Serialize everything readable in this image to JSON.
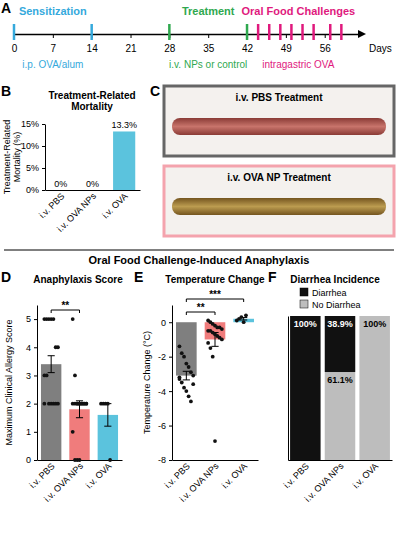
{
  "section_title": "Oral Food Challenge-Induced Anaphylaxis",
  "chart_data": [
    {
      "type": "timeline",
      "label": "A",
      "x_label": "Days",
      "xlim": [
        0,
        62
      ],
      "xticks": [
        0,
        7,
        14,
        21,
        28,
        35,
        42,
        49,
        56
      ],
      "phases": [
        {
          "name": "Sensitization",
          "route": "i.p. OVA/alum",
          "color": "#35a9dc",
          "days": [
            0,
            14
          ]
        },
        {
          "name": "Treatment",
          "route": "i.v. NPs or control",
          "color": "#2fa84f",
          "days": [
            28,
            42
          ]
        },
        {
          "name": "Oral Food Challenges",
          "route": "intragastric OVA",
          "color": "#e0197d",
          "days": [
            44,
            46,
            48,
            50,
            52,
            54,
            57,
            59
          ]
        }
      ]
    },
    {
      "type": "bar",
      "label": "B",
      "title": "Treatment-Related Mortality",
      "y_label": "Treatment-Related Mortality (%)",
      "categories": [
        "i.v. PBS",
        "i.v. OVA NPs",
        "i.v. OVA"
      ],
      "values": [
        0,
        0,
        13.3
      ],
      "value_labels": [
        "0%",
        "0%",
        "13.3%"
      ],
      "data_labels": true,
      "color": "#5bc3dd",
      "ylim": [
        0,
        15
      ],
      "yticks": [
        {
          "value": 0,
          "label": "0%"
        },
        {
          "value": 5,
          "label": "5%"
        },
        {
          "value": 10,
          "label": "10%"
        },
        {
          "value": 15,
          "label": "15%"
        }
      ]
    },
    {
      "type": "image",
      "label": "C",
      "images": [
        {
          "title": "i.v. PBS Treatment",
          "color": "#666666"
        },
        {
          "title": "i.v. OVA NP Treatment",
          "color": "#f4a3ad"
        }
      ]
    },
    {
      "type": "bar",
      "label": "D",
      "title": "Anaphylaxis Score",
      "y_label": "Maximum Clinical Allergy Score",
      "categories": [
        "i.v. PBS",
        "i.v. OVA NPs",
        "i.v. OVA"
      ],
      "values": [
        3.4,
        1.8,
        1.6
      ],
      "errors": [
        0.3,
        0.3,
        0.4
      ],
      "points": [
        [
          5,
          5,
          5,
          5,
          5,
          4,
          4,
          3,
          3,
          2,
          2,
          2,
          2,
          2,
          2
        ],
        [
          5,
          3,
          2,
          2,
          2,
          2,
          2,
          2,
          2,
          2,
          2,
          2,
          2,
          2,
          1,
          0,
          0,
          0
        ],
        [
          2,
          2,
          2,
          2,
          0
        ]
      ],
      "colors": [
        "#7f7f7f",
        "#f07c7c",
        "#5bc3dd"
      ],
      "ylim": [
        0,
        5.5
      ],
      "yticks": [
        0,
        1,
        2,
        3,
        4,
        5
      ],
      "significance": [
        {
          "groups": [
            "i.v. PBS",
            "i.v. OVA NPs"
          ],
          "label": "**"
        }
      ]
    },
    {
      "type": "bar",
      "label": "E",
      "title": "Temperature Change",
      "y_label": "Temperature Change (°C)",
      "categories": [
        "i.v. PBS",
        "i.v. OVA NPs",
        "i.v. OVA"
      ],
      "values": [
        -3.1,
        -1.0,
        0.2
      ],
      "errors": [
        0.25,
        0.4,
        0.07
      ],
      "points": [
        [
          -1.4,
          -1.8,
          -2.0,
          -2.4,
          -2.6,
          -2.9,
          -3.1,
          -3.3,
          -3.5,
          -3.8,
          -4.0,
          -4.3,
          -4.6,
          -3.6,
          -3.2
        ],
        [
          0.1,
          0,
          -0.1,
          -0.2,
          -0.3,
          -0.3,
          -0.4,
          -0.5,
          -0.5,
          -0.6,
          -0.7,
          -0.8,
          -0.9,
          -1.0,
          -1.2,
          -1.5,
          -2.0,
          -6.9
        ],
        [
          0.1,
          0.2,
          0.3,
          0,
          0.4
        ]
      ],
      "colors": [
        "#7f7f7f",
        "#f07c7c",
        "#5bc3dd"
      ],
      "ylim": [
        -8,
        1
      ],
      "yticks": [
        -8,
        -6,
        -4,
        -2,
        0
      ],
      "significance": [
        {
          "groups": [
            "i.v. PBS",
            "i.v. OVA NPs"
          ],
          "label": "**"
        },
        {
          "groups": [
            "i.v. PBS",
            "i.v. OVA"
          ],
          "label": "***"
        }
      ]
    },
    {
      "type": "bar",
      "label": "F",
      "title": "Diarrhea Incidence",
      "stacked": true,
      "legend": "top",
      "tick_labels": "x",
      "data_labels": true,
      "categories": [
        "i.v. PBS",
        "i.v. OVA NPs",
        "i.v. OVA"
      ],
      "ylim": [
        0,
        100
      ],
      "series": [
        {
          "name": "Diarrhea",
          "color": "#111111",
          "values": [
            100,
            38.9,
            0
          ],
          "value_labels": [
            "100%",
            "38.9%",
            null
          ]
        },
        {
          "name": "No Diarrhea",
          "color": "#bdbdbd",
          "values": [
            0,
            61.1,
            100
          ],
          "value_labels": [
            null,
            "61.1%",
            "100%"
          ]
        }
      ]
    }
  ]
}
